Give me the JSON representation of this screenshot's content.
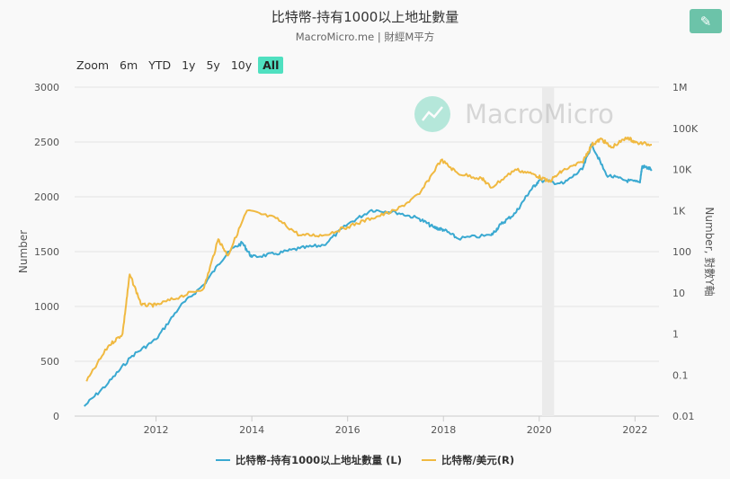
{
  "title": "比特幣-持有1000以上地址數量",
  "subtitle": "MacroMicro.me | 財經M平方",
  "edit_icon": "pencil-icon",
  "range_selector": {
    "label": "Zoom",
    "buttons": [
      "6m",
      "YTD",
      "1y",
      "5y",
      "10y",
      "All"
    ],
    "active": "All"
  },
  "watermark": "MacroMicro",
  "colors": {
    "left": "#3aa9d1",
    "right": "#f0b941",
    "active": "#4fe0c0",
    "edit": "#6cc3a9"
  },
  "chart_data": {
    "type": "line",
    "title": "比特幣-持有1000以上地址數量",
    "xlim": [
      2010.3,
      2022.5
    ],
    "x_ticks": [
      "2012",
      "2014",
      "2016",
      "2018",
      "2020",
      "2022"
    ],
    "ylabel_left": "Number",
    "ylabel_right": "Number, 對數Y軸",
    "ylim_left": [
      0,
      3000
    ],
    "y_ticks_left": [
      "0",
      "500",
      "1000",
      "1500",
      "2000",
      "2500",
      "3000"
    ],
    "ylim_right": [
      0.01,
      1000000
    ],
    "y_ticks_right": [
      "0.01",
      "0.1",
      "1",
      "10",
      "100",
      "1K",
      "10K",
      "100K",
      "1M"
    ],
    "shaded_band": [
      2020.06,
      2020.31
    ],
    "series": [
      {
        "name": "比特幣-持有1000以上地址數量 (L)",
        "axis": "left",
        "color": "#3aa9d1",
        "x": [
          2010.5,
          2011,
          2011.5,
          2012,
          2012.5,
          2013,
          2013.5,
          2013.8,
          2014,
          2014.5,
          2015,
          2015.5,
          2016,
          2016.5,
          2017,
          2017.5,
          2017.8,
          2018,
          2018.3,
          2019,
          2019.2,
          2019.5,
          2019.8,
          2020,
          2020.5,
          2020.9,
          2021.1,
          2021.4,
          2021.8,
          2022.1,
          2022.15,
          2022.35
        ],
        "y": [
          90,
          300,
          550,
          700,
          1000,
          1200,
          1500,
          1580,
          1450,
          1480,
          1530,
          1560,
          1750,
          1880,
          1860,
          1800,
          1720,
          1700,
          1620,
          1650,
          1750,
          1850,
          2050,
          2150,
          2120,
          2250,
          2480,
          2200,
          2150,
          2130,
          2280,
          2250
        ]
      },
      {
        "name": "比特幣/美元(R)",
        "axis": "right",
        "color": "#f0b941",
        "x": [
          2010.55,
          2011,
          2011.3,
          2011.45,
          2011.7,
          2012,
          2012.5,
          2013,
          2013.3,
          2013.5,
          2013.9,
          2014.5,
          2015,
          2015.5,
          2016,
          2016.5,
          2017,
          2017.5,
          2017.95,
          2018.3,
          2018.8,
          2019,
          2019.5,
          2019.9,
          2020.2,
          2020.5,
          2020.9,
          2021.1,
          2021.3,
          2021.5,
          2021.85,
          2022,
          2022.35
        ],
        "y": [
          0.07,
          0.5,
          1,
          28,
          5,
          5,
          8,
          13,
          200,
          80,
          1000,
          650,
          250,
          250,
          400,
          650,
          1000,
          2500,
          17000,
          8000,
          6000,
          3600,
          10000,
          7500,
          5000,
          9500,
          15000,
          40000,
          55000,
          34000,
          60000,
          45000,
          40000
        ]
      }
    ]
  }
}
